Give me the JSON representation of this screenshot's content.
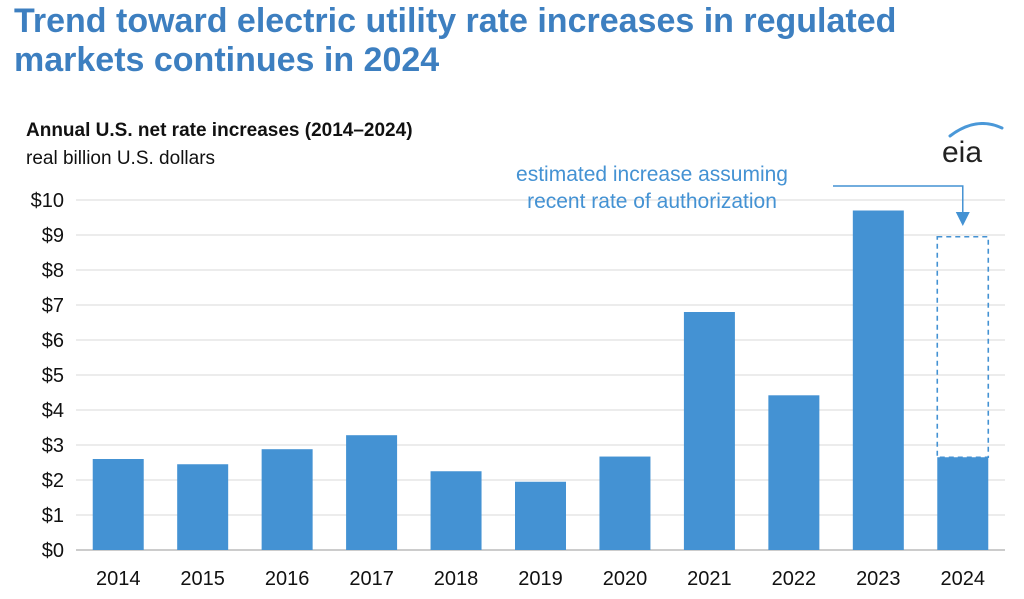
{
  "headline": "Trend toward electric utility rate increases in regulated markets continues in 2024",
  "logo_text": "eia",
  "colors": {
    "bar": "#4492d3",
    "headline": "#3d7fc0",
    "annotation": "#4492d3",
    "grid": "#d9d9d9",
    "logo_arc": "#4a98d8"
  },
  "chart_data": {
    "type": "bar",
    "title": "Annual U.S. net rate increases (2014–2024)",
    "subtitle": "real billion U.S. dollars",
    "categories": [
      "2014",
      "2015",
      "2016",
      "2017",
      "2018",
      "2019",
      "2020",
      "2021",
      "2022",
      "2023",
      "2024"
    ],
    "values": [
      2.6,
      2.45,
      2.88,
      3.28,
      2.25,
      1.95,
      2.67,
      6.8,
      4.42,
      9.7,
      2.65
    ],
    "estimated": {
      "category": "2024",
      "value": 8.95
    },
    "ylim": [
      0,
      10
    ],
    "yticks": [
      0,
      1,
      2,
      3,
      4,
      5,
      6,
      7,
      8,
      9,
      10
    ],
    "ytick_labels": [
      "$0",
      "$1",
      "$2",
      "$3",
      "$4",
      "$5",
      "$6",
      "$7",
      "$8",
      "$9",
      "$10"
    ],
    "grid": true,
    "annotation": [
      "estimated increase assuming",
      "recent rate of authorization"
    ]
  }
}
